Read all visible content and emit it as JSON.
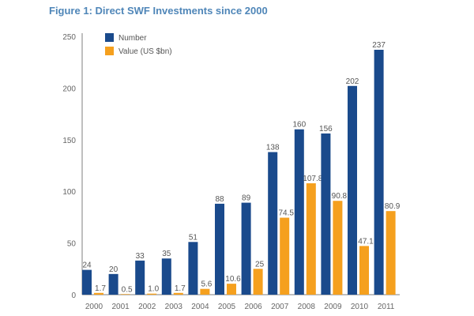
{
  "chart_data": {
    "type": "bar",
    "title": "Figure 1: Direct SWF Investments since 2000",
    "categories": [
      "2000",
      "2001",
      "2002",
      "2003",
      "2004",
      "2005",
      "2006",
      "2007",
      "2008",
      "2009",
      "2010",
      "2011"
    ],
    "series": [
      {
        "name": "Number",
        "color": "#1a4a8c",
        "values": [
          24,
          20,
          33,
          35,
          51,
          88,
          89,
          138,
          160,
          156,
          202,
          237
        ],
        "labels": [
          "24",
          "20",
          "33",
          "35",
          "51",
          "88",
          "89",
          "138",
          "160",
          "156",
          "202",
          "237"
        ]
      },
      {
        "name": "Value (US $bn)",
        "color": "#f5a01e",
        "values": [
          1.7,
          0.5,
          1.0,
          1.7,
          5.6,
          10.6,
          25,
          74.5,
          107.8,
          90.8,
          47.1,
          80.9
        ],
        "labels": [
          "1.7",
          "0.5",
          "1.0",
          "1.7",
          "5.6",
          "10.6",
          "25",
          "74.5",
          "107.8",
          "90.8",
          "47.1",
          "80.9"
        ]
      }
    ],
    "ylim": [
      0,
      250
    ],
    "yticks": [
      "0",
      "50",
      "100",
      "150",
      "200",
      "250"
    ],
    "grid": false,
    "legend": "top-left"
  }
}
